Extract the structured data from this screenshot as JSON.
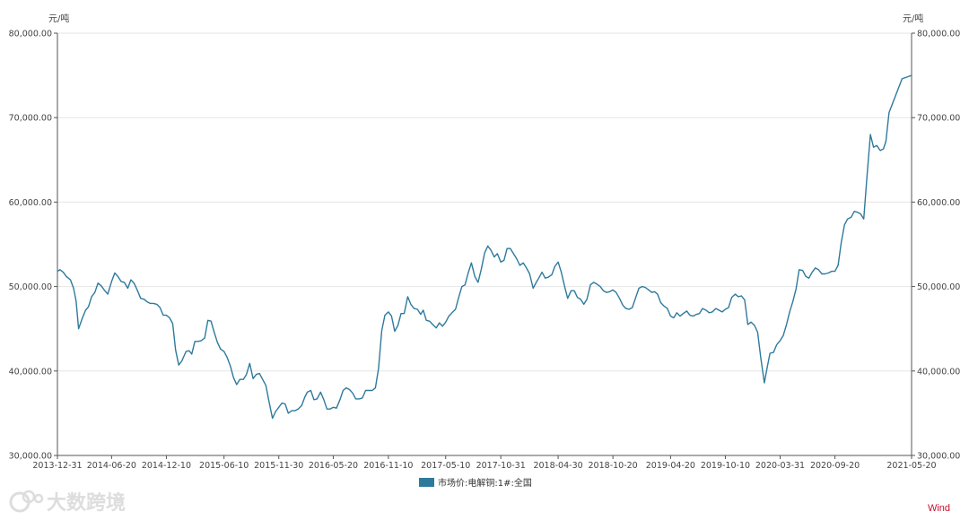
{
  "chart_data": {
    "type": "line",
    "y_unit_left": "元/吨",
    "y_unit_right": "元/吨",
    "ylim": [
      30000,
      80000
    ],
    "y_ticks": [
      "30,000.00",
      "40,000.00",
      "50,000.00",
      "60,000.00",
      "70,000.00",
      "80,000.00"
    ],
    "y_tick_values": [
      30000,
      40000,
      50000,
      60000,
      70000,
      80000
    ],
    "x_range": [
      "2013-12-31",
      "2021-05-20"
    ],
    "x_ticks": [
      "2013-12-31",
      "2014-06-20",
      "2014-12-10",
      "2015-06-10",
      "2015-11-30",
      "2016-05-20",
      "2016-11-10",
      "2017-05-10",
      "2017-10-31",
      "2018-04-30",
      "2018-10-20",
      "2019-04-20",
      "2019-10-10",
      "2020-03-31",
      "2020-09-20",
      "2021-05-20"
    ],
    "legend": "bottom-center",
    "grid": true,
    "series": [
      {
        "name": "市场价:电解铜:1#:全国",
        "color": "#2e7a9c",
        "points": [
          [
            "2013-12-31",
            51800
          ],
          [
            "2014-01-08",
            52000
          ],
          [
            "2014-01-18",
            51700
          ],
          [
            "2014-01-28",
            51200
          ],
          [
            "2014-02-10",
            50800
          ],
          [
            "2014-02-20",
            49800
          ],
          [
            "2014-02-28",
            48300
          ],
          [
            "2014-03-08",
            45000
          ],
          [
            "2014-03-20",
            46300
          ],
          [
            "2014-03-30",
            47200
          ],
          [
            "2014-04-08",
            47600
          ],
          [
            "2014-04-18",
            48800
          ],
          [
            "2014-04-28",
            49300
          ],
          [
            "2014-05-08",
            50400
          ],
          [
            "2014-05-18",
            50100
          ],
          [
            "2014-05-28",
            49600
          ],
          [
            "2014-06-08",
            49100
          ],
          [
            "2014-06-20",
            50600
          ],
          [
            "2014-06-30",
            51600
          ],
          [
            "2014-07-10",
            51200
          ],
          [
            "2014-07-20",
            50600
          ],
          [
            "2014-07-30",
            50500
          ],
          [
            "2014-08-10",
            49800
          ],
          [
            "2014-08-20",
            50800
          ],
          [
            "2014-08-30",
            50400
          ],
          [
            "2014-09-10",
            49500
          ],
          [
            "2014-09-20",
            48600
          ],
          [
            "2014-09-30",
            48500
          ],
          [
            "2014-10-10",
            48200
          ],
          [
            "2014-10-20",
            48000
          ],
          [
            "2014-10-30",
            48000
          ],
          [
            "2014-11-10",
            47900
          ],
          [
            "2014-11-20",
            47500
          ],
          [
            "2014-11-30",
            46600
          ],
          [
            "2014-12-10",
            46600
          ],
          [
            "2014-12-20",
            46300
          ],
          [
            "2014-12-30",
            45600
          ],
          [
            "2015-01-08",
            42500
          ],
          [
            "2015-01-18",
            40700
          ],
          [
            "2015-01-28",
            41200
          ],
          [
            "2015-02-10",
            42300
          ],
          [
            "2015-02-20",
            42400
          ],
          [
            "2015-02-28",
            42000
          ],
          [
            "2015-03-10",
            43500
          ],
          [
            "2015-03-20",
            43500
          ],
          [
            "2015-03-30",
            43600
          ],
          [
            "2015-04-10",
            43900
          ],
          [
            "2015-04-20",
            46000
          ],
          [
            "2015-04-30",
            45900
          ],
          [
            "2015-05-10",
            44600
          ],
          [
            "2015-05-20",
            43400
          ],
          [
            "2015-05-30",
            42600
          ],
          [
            "2015-06-10",
            42300
          ],
          [
            "2015-06-20",
            41600
          ],
          [
            "2015-06-30",
            40600
          ],
          [
            "2015-07-10",
            39200
          ],
          [
            "2015-07-20",
            38400
          ],
          [
            "2015-07-30",
            39000
          ],
          [
            "2015-08-10",
            39000
          ],
          [
            "2015-08-20",
            39600
          ],
          [
            "2015-08-30",
            40900
          ],
          [
            "2015-09-10",
            39100
          ],
          [
            "2015-09-20",
            39600
          ],
          [
            "2015-09-30",
            39700
          ],
          [
            "2015-10-10",
            39000
          ],
          [
            "2015-10-20",
            38300
          ],
          [
            "2015-10-30",
            36400
          ],
          [
            "2015-11-10",
            34400
          ],
          [
            "2015-11-20",
            35200
          ],
          [
            "2015-11-30",
            35700
          ],
          [
            "2015-12-10",
            36200
          ],
          [
            "2015-12-20",
            36100
          ],
          [
            "2015-12-30",
            35000
          ],
          [
            "2016-01-10",
            35300
          ],
          [
            "2016-01-20",
            35300
          ],
          [
            "2016-01-30",
            35500
          ],
          [
            "2016-02-10",
            35900
          ],
          [
            "2016-02-20",
            36900
          ],
          [
            "2016-02-28",
            37500
          ],
          [
            "2016-03-10",
            37700
          ],
          [
            "2016-03-20",
            36600
          ],
          [
            "2016-03-30",
            36700
          ],
          [
            "2016-04-10",
            37500
          ],
          [
            "2016-04-20",
            36600
          ],
          [
            "2016-04-30",
            35500
          ],
          [
            "2016-05-10",
            35500
          ],
          [
            "2016-05-20",
            35700
          ],
          [
            "2016-05-30",
            35600
          ],
          [
            "2016-06-10",
            36600
          ],
          [
            "2016-06-20",
            37700
          ],
          [
            "2016-06-30",
            38000
          ],
          [
            "2016-07-10",
            37800
          ],
          [
            "2016-07-20",
            37400
          ],
          [
            "2016-07-30",
            36700
          ],
          [
            "2016-08-10",
            36700
          ],
          [
            "2016-08-20",
            36800
          ],
          [
            "2016-08-30",
            37700
          ],
          [
            "2016-09-10",
            37700
          ],
          [
            "2016-09-20",
            37700
          ],
          [
            "2016-09-30",
            38000
          ],
          [
            "2016-10-10",
            40300
          ],
          [
            "2016-10-20",
            44800
          ],
          [
            "2016-10-30",
            46600
          ],
          [
            "2016-11-10",
            47000
          ],
          [
            "2016-11-20",
            46500
          ],
          [
            "2016-11-30",
            44700
          ],
          [
            "2016-12-10",
            45400
          ],
          [
            "2016-12-20",
            46800
          ],
          [
            "2016-12-30",
            46800
          ],
          [
            "2017-01-10",
            48800
          ],
          [
            "2017-01-20",
            47900
          ],
          [
            "2017-01-30",
            47400
          ],
          [
            "2017-02-10",
            47300
          ],
          [
            "2017-02-20",
            46700
          ],
          [
            "2017-02-28",
            47200
          ],
          [
            "2017-03-10",
            46000
          ],
          [
            "2017-03-20",
            45900
          ],
          [
            "2017-03-30",
            45500
          ],
          [
            "2017-04-10",
            45100
          ],
          [
            "2017-04-20",
            45700
          ],
          [
            "2017-04-30",
            45300
          ],
          [
            "2017-05-10",
            45800
          ],
          [
            "2017-05-20",
            46500
          ],
          [
            "2017-05-30",
            46900
          ],
          [
            "2017-06-10",
            47300
          ],
          [
            "2017-06-20",
            48700
          ],
          [
            "2017-06-30",
            50000
          ],
          [
            "2017-07-10",
            50200
          ],
          [
            "2017-07-20",
            51600
          ],
          [
            "2017-07-30",
            52800
          ],
          [
            "2017-08-10",
            51200
          ],
          [
            "2017-08-20",
            50500
          ],
          [
            "2017-08-30",
            52000
          ],
          [
            "2017-09-10",
            54000
          ],
          [
            "2017-09-20",
            54800
          ],
          [
            "2017-09-30",
            54300
          ],
          [
            "2017-10-10",
            53500
          ],
          [
            "2017-10-20",
            53900
          ],
          [
            "2017-10-31",
            52900
          ],
          [
            "2017-11-10",
            53100
          ],
          [
            "2017-11-20",
            54500
          ],
          [
            "2017-11-30",
            54500
          ],
          [
            "2017-12-10",
            53900
          ],
          [
            "2017-12-20",
            53300
          ],
          [
            "2017-12-30",
            52500
          ],
          [
            "2018-01-10",
            52800
          ],
          [
            "2018-01-20",
            52200
          ],
          [
            "2018-01-30",
            51500
          ],
          [
            "2018-02-10",
            49800
          ],
          [
            "2018-02-20",
            50500
          ],
          [
            "2018-02-28",
            51000
          ],
          [
            "2018-03-10",
            51700
          ],
          [
            "2018-03-20",
            51000
          ],
          [
            "2018-03-30",
            51100
          ],
          [
            "2018-04-10",
            51400
          ],
          [
            "2018-04-20",
            52400
          ],
          [
            "2018-04-30",
            52900
          ],
          [
            "2018-05-10",
            51700
          ],
          [
            "2018-05-20",
            50100
          ],
          [
            "2018-05-30",
            48600
          ],
          [
            "2018-06-10",
            49500
          ],
          [
            "2018-06-20",
            49500
          ],
          [
            "2018-06-30",
            48700
          ],
          [
            "2018-07-10",
            48500
          ],
          [
            "2018-07-20",
            47900
          ],
          [
            "2018-07-30",
            48500
          ],
          [
            "2018-08-10",
            50200
          ],
          [
            "2018-08-20",
            50500
          ],
          [
            "2018-08-30",
            50300
          ],
          [
            "2018-09-10",
            50000
          ],
          [
            "2018-09-20",
            49500
          ],
          [
            "2018-09-30",
            49300
          ],
          [
            "2018-10-10",
            49400
          ],
          [
            "2018-10-20",
            49600
          ],
          [
            "2018-10-30",
            49300
          ],
          [
            "2018-11-10",
            48600
          ],
          [
            "2018-11-20",
            47800
          ],
          [
            "2018-11-30",
            47400
          ],
          [
            "2018-12-10",
            47300
          ],
          [
            "2018-12-20",
            47500
          ],
          [
            "2018-12-30",
            48600
          ],
          [
            "2019-01-10",
            49800
          ],
          [
            "2019-01-20",
            50000
          ],
          [
            "2019-01-30",
            49900
          ],
          [
            "2019-02-10",
            49600
          ],
          [
            "2019-02-20",
            49300
          ],
          [
            "2019-02-28",
            49400
          ],
          [
            "2019-03-10",
            49100
          ],
          [
            "2019-03-20",
            48100
          ],
          [
            "2019-03-30",
            47700
          ],
          [
            "2019-04-10",
            47400
          ],
          [
            "2019-04-20",
            46500
          ],
          [
            "2019-04-30",
            46300
          ],
          [
            "2019-05-10",
            46900
          ],
          [
            "2019-05-20",
            46500
          ],
          [
            "2019-05-30",
            46800
          ],
          [
            "2019-06-10",
            47100
          ],
          [
            "2019-06-20",
            46600
          ],
          [
            "2019-06-30",
            46500
          ],
          [
            "2019-07-10",
            46700
          ],
          [
            "2019-07-20",
            46800
          ],
          [
            "2019-07-30",
            47400
          ],
          [
            "2019-08-10",
            47200
          ],
          [
            "2019-08-20",
            46900
          ],
          [
            "2019-08-30",
            47000
          ],
          [
            "2019-09-10",
            47400
          ],
          [
            "2019-09-20",
            47200
          ],
          [
            "2019-09-30",
            47000
          ],
          [
            "2019-10-10",
            47300
          ],
          [
            "2019-10-20",
            47500
          ],
          [
            "2019-10-30",
            48700
          ],
          [
            "2019-11-10",
            49100
          ],
          [
            "2019-11-20",
            48800
          ],
          [
            "2019-11-30",
            48900
          ],
          [
            "2019-12-10",
            48400
          ],
          [
            "2019-12-20",
            45500
          ],
          [
            "2019-12-30",
            45800
          ],
          [
            "2020-01-10",
            45400
          ],
          [
            "2020-01-20",
            44600
          ],
          [
            "2020-01-30",
            41500
          ],
          [
            "2020-02-10",
            38600
          ],
          [
            "2020-02-20",
            40600
          ],
          [
            "2020-02-28",
            42100
          ],
          [
            "2020-03-10",
            42200
          ],
          [
            "2020-03-20",
            43100
          ],
          [
            "2020-03-31",
            43600
          ],
          [
            "2020-04-10",
            44200
          ],
          [
            "2020-04-20",
            45500
          ],
          [
            "2020-04-30",
            47000
          ],
          [
            "2020-05-10",
            48200
          ],
          [
            "2020-05-20",
            49700
          ],
          [
            "2020-05-30",
            52000
          ],
          [
            "2020-06-10",
            51900
          ],
          [
            "2020-06-20",
            51200
          ],
          [
            "2020-06-30",
            51000
          ],
          [
            "2020-07-10",
            51700
          ],
          [
            "2020-07-20",
            52200
          ],
          [
            "2020-07-30",
            52000
          ],
          [
            "2020-08-10",
            51500
          ],
          [
            "2020-08-20",
            51500
          ],
          [
            "2020-08-30",
            51600
          ],
          [
            "2020-09-10",
            51800
          ],
          [
            "2020-09-20",
            51800
          ],
          [
            "2020-09-30",
            52500
          ],
          [
            "2020-10-10",
            55200
          ],
          [
            "2020-10-20",
            57300
          ],
          [
            "2020-10-30",
            58000
          ],
          [
            "2020-11-10",
            58200
          ],
          [
            "2020-11-20",
            58900
          ],
          [
            "2020-11-30",
            58800
          ],
          [
            "2020-12-10",
            58600
          ],
          [
            "2020-12-20",
            58000
          ],
          [
            "2020-12-30",
            62900
          ],
          [
            "2021-01-10",
            68000
          ],
          [
            "2021-01-20",
            66500
          ],
          [
            "2021-01-30",
            66700
          ],
          [
            "2021-02-10",
            66100
          ],
          [
            "2021-02-20",
            66300
          ],
          [
            "2021-02-28",
            67200
          ],
          [
            "2021-03-10",
            70600
          ],
          [
            "2021-04-20",
            74600
          ],
          [
            "2021-05-20",
            75000
          ]
        ]
      }
    ]
  },
  "footer": {
    "brand": "Wind",
    "brand_color": "#c8102e",
    "watermark": "大数跨境"
  }
}
